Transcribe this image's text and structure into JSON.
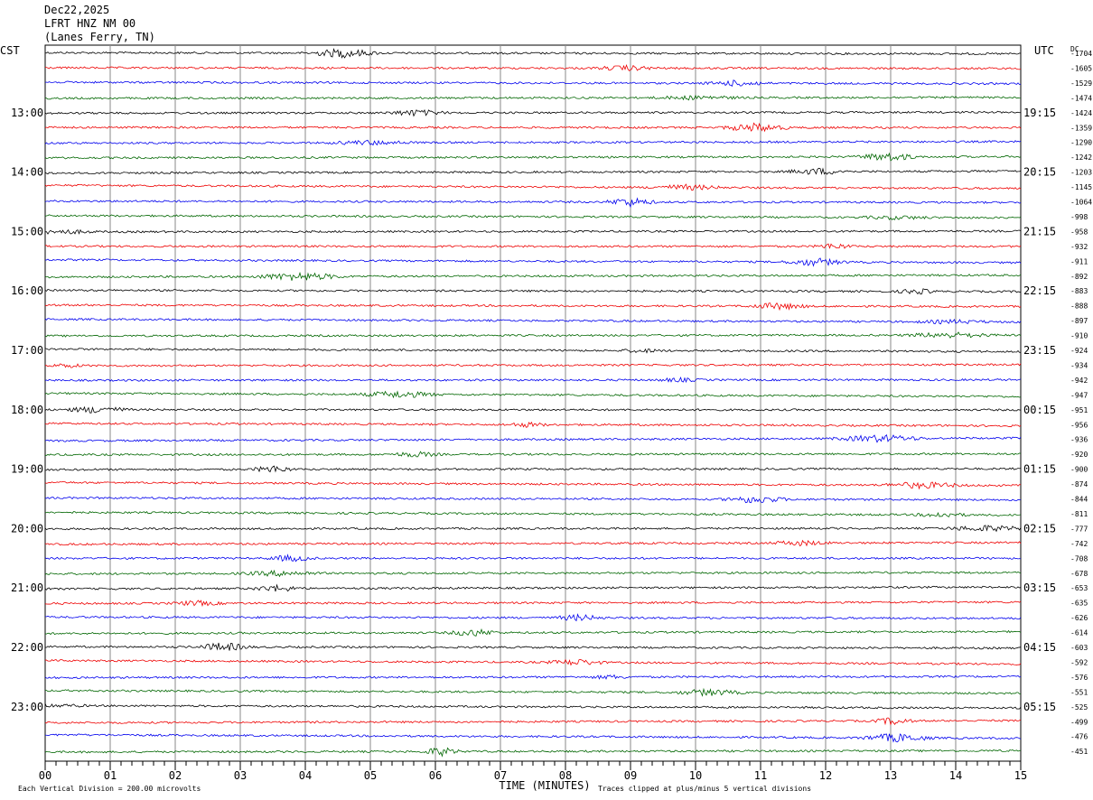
{
  "header": {
    "date": "Dec22,2025",
    "station": "LFRT HNZ NM 00",
    "location": "(Lanes Ferry, TN)"
  },
  "chart_data": {
    "type": "line",
    "title": "LFRT HNZ NM 00",
    "left_label": "CST",
    "right_label": "UTC",
    "dc_label": "DC",
    "xlabel": "TIME (MINUTES)",
    "x_ticks": [
      "00",
      "01",
      "02",
      "03",
      "04",
      "05",
      "06",
      "07",
      "08",
      "09",
      "10",
      "11",
      "12",
      "13",
      "14",
      "15"
    ],
    "xlim": [
      0,
      15
    ],
    "left_time_labels": [
      "13:00",
      "14:00",
      "15:00",
      "16:00",
      "17:00",
      "18:00",
      "19:00",
      "20:00",
      "21:00",
      "22:00",
      "23:00"
    ],
    "right_time_labels": [
      "19:15",
      "20:15",
      "21:15",
      "22:15",
      "23:15",
      "00:15",
      "01:15",
      "02:15",
      "03:15",
      "04:15",
      "05:15"
    ],
    "dc_offsets": [
      "-1704",
      "-1605",
      "-1529",
      "-1474",
      "-1424",
      "-1359",
      "-1290",
      "-1242",
      "-1203",
      "-1145",
      "-1064",
      "-998",
      "-958",
      "-932",
      "-911",
      "-892",
      "-883",
      "-888",
      "-897",
      "-910",
      "-924",
      "-934",
      "-942",
      "-947",
      "-951",
      "-956",
      "-936",
      "-920",
      "-900",
      "-874",
      "-844",
      "-811",
      "-777",
      "-742",
      "-708",
      "-678",
      "-653",
      "-635",
      "-626",
      "-614",
      "-603",
      "-592",
      "-576",
      "-551",
      "-525",
      "-499",
      "-476",
      "-451"
    ],
    "trace_colors": [
      "#000000",
      "#ee0000",
      "#0000ee",
      "#006600"
    ],
    "footer_left": "Each Vertical Division =  200.00 microvolts",
    "footer_right": "Traces clipped at plus/minus 5 vertical divisions",
    "grid": true
  }
}
